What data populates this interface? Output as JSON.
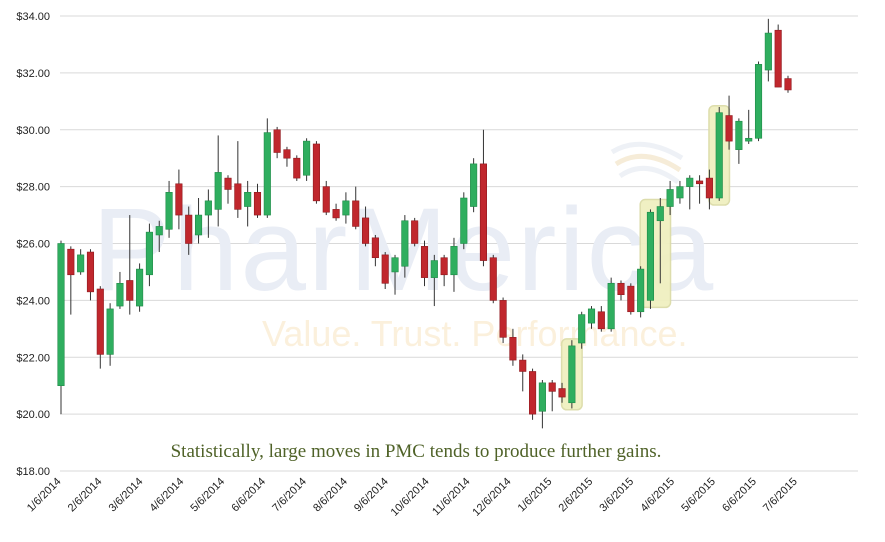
{
  "watermark": {
    "brand": "PharMerica",
    "tagline": "Value. Trust. Performance."
  },
  "annotation": "Statistically, large moves in PMC tends to produce further gains.",
  "colors": {
    "up": "#2fae5f",
    "down": "#c0272d",
    "highlight": "#f0f0c0",
    "grid": "#d9d9d9"
  },
  "chart_data": {
    "type": "candlestick",
    "ylim": [
      18,
      34
    ],
    "yticks": [
      "$18.00",
      "$20.00",
      "$22.00",
      "$24.00",
      "$26.00",
      "$28.00",
      "$30.00",
      "$32.00",
      "$34.00"
    ],
    "xticks": [
      "1/6/2014",
      "2/6/2014",
      "3/6/2014",
      "4/6/2014",
      "5/6/2014",
      "6/6/2014",
      "7/6/2014",
      "8/6/2014",
      "9/6/2014",
      "10/6/2014",
      "11/6/2014",
      "12/6/2014",
      "1/6/2015",
      "2/6/2015",
      "3/6/2015",
      "4/6/2015",
      "5/6/2015",
      "6/6/2015",
      "7/6/2015"
    ],
    "grid": true,
    "candles": [
      {
        "o": 21.0,
        "h": 26.1,
        "l": 20.0,
        "c": 26.0
      },
      {
        "o": 25.8,
        "h": 25.9,
        "l": 23.5,
        "c": 24.9
      },
      {
        "o": 25.0,
        "h": 25.8,
        "l": 24.9,
        "c": 25.6
      },
      {
        "o": 25.7,
        "h": 25.8,
        "l": 24.0,
        "c": 24.3
      },
      {
        "o": 24.4,
        "h": 24.5,
        "l": 21.6,
        "c": 22.1
      },
      {
        "o": 22.1,
        "h": 23.9,
        "l": 21.7,
        "c": 23.7
      },
      {
        "o": 23.8,
        "h": 25.0,
        "l": 23.7,
        "c": 24.6
      },
      {
        "o": 24.7,
        "h": 27.0,
        "l": 23.5,
        "c": 24.0
      },
      {
        "o": 23.8,
        "h": 25.3,
        "l": 23.6,
        "c": 25.1
      },
      {
        "o": 24.9,
        "h": 26.7,
        "l": 24.5,
        "c": 26.4
      },
      {
        "o": 26.3,
        "h": 26.8,
        "l": 25.7,
        "c": 26.6
      },
      {
        "o": 26.5,
        "h": 28.2,
        "l": 26.2,
        "c": 27.8
      },
      {
        "o": 28.1,
        "h": 28.6,
        "l": 26.5,
        "c": 27.0
      },
      {
        "o": 27.0,
        "h": 27.3,
        "l": 25.6,
        "c": 26.0
      },
      {
        "o": 26.3,
        "h": 27.6,
        "l": 26.0,
        "c": 27.0
      },
      {
        "o": 27.0,
        "h": 27.9,
        "l": 26.2,
        "c": 27.5
      },
      {
        "o": 27.2,
        "h": 29.8,
        "l": 26.6,
        "c": 28.5
      },
      {
        "o": 28.3,
        "h": 28.4,
        "l": 27.4,
        "c": 27.9
      },
      {
        "o": 28.1,
        "h": 29.6,
        "l": 26.9,
        "c": 27.2
      },
      {
        "o": 27.3,
        "h": 28.2,
        "l": 26.6,
        "c": 27.8
      },
      {
        "o": 27.8,
        "h": 28.1,
        "l": 26.9,
        "c": 27.0
      },
      {
        "o": 27.0,
        "h": 30.4,
        "l": 26.9,
        "c": 29.9
      },
      {
        "o": 30.0,
        "h": 30.1,
        "l": 29.0,
        "c": 29.2
      },
      {
        "o": 29.3,
        "h": 29.4,
        "l": 28.7,
        "c": 29.0
      },
      {
        "o": 29.0,
        "h": 29.1,
        "l": 28.2,
        "c": 28.3
      },
      {
        "o": 28.4,
        "h": 29.7,
        "l": 28.2,
        "c": 29.6
      },
      {
        "o": 29.5,
        "h": 29.6,
        "l": 27.4,
        "c": 27.5
      },
      {
        "o": 28.0,
        "h": 28.2,
        "l": 27.0,
        "c": 27.1
      },
      {
        "o": 27.2,
        "h": 27.4,
        "l": 26.8,
        "c": 26.9
      },
      {
        "o": 27.0,
        "h": 27.8,
        "l": 26.7,
        "c": 27.5
      },
      {
        "o": 27.5,
        "h": 28.0,
        "l": 26.5,
        "c": 26.6
      },
      {
        "o": 26.9,
        "h": 27.3,
        "l": 25.9,
        "c": 26.0
      },
      {
        "o": 26.2,
        "h": 26.3,
        "l": 25.2,
        "c": 25.5
      },
      {
        "o": 25.6,
        "h": 25.7,
        "l": 24.4,
        "c": 24.6
      },
      {
        "o": 25.0,
        "h": 25.6,
        "l": 24.2,
        "c": 25.5
      },
      {
        "o": 25.2,
        "h": 27.0,
        "l": 24.8,
        "c": 26.8
      },
      {
        "o": 26.8,
        "h": 26.9,
        "l": 25.9,
        "c": 26.0
      },
      {
        "o": 25.9,
        "h": 26.1,
        "l": 24.5,
        "c": 24.8
      },
      {
        "o": 24.8,
        "h": 25.6,
        "l": 23.8,
        "c": 25.4
      },
      {
        "o": 25.5,
        "h": 25.6,
        "l": 24.5,
        "c": 24.9
      },
      {
        "o": 24.9,
        "h": 26.2,
        "l": 24.3,
        "c": 25.9
      },
      {
        "o": 26.0,
        "h": 27.8,
        "l": 25.8,
        "c": 27.6
      },
      {
        "o": 27.3,
        "h": 29.0,
        "l": 27.1,
        "c": 28.8
      },
      {
        "o": 28.8,
        "h": 30.0,
        "l": 25.2,
        "c": 25.4
      },
      {
        "o": 25.5,
        "h": 25.6,
        "l": 23.9,
        "c": 24.0
      },
      {
        "o": 24.0,
        "h": 24.1,
        "l": 22.5,
        "c": 22.7
      },
      {
        "o": 22.7,
        "h": 23.0,
        "l": 21.7,
        "c": 21.9
      },
      {
        "o": 21.9,
        "h": 22.1,
        "l": 20.8,
        "c": 21.5
      },
      {
        "o": 21.5,
        "h": 21.6,
        "l": 19.8,
        "c": 20.0
      },
      {
        "o": 20.1,
        "h": 21.2,
        "l": 19.5,
        "c": 21.1
      },
      {
        "o": 21.1,
        "h": 21.2,
        "l": 20.1,
        "c": 20.8
      },
      {
        "o": 20.9,
        "h": 21.1,
        "l": 20.4,
        "c": 20.6
      },
      {
        "o": 20.4,
        "h": 22.6,
        "l": 20.2,
        "c": 22.4
      },
      {
        "o": 22.5,
        "h": 23.6,
        "l": 22.3,
        "c": 23.5
      },
      {
        "o": 23.2,
        "h": 23.8,
        "l": 23.0,
        "c": 23.7
      },
      {
        "o": 23.6,
        "h": 23.8,
        "l": 22.9,
        "c": 23.0
      },
      {
        "o": 23.0,
        "h": 24.8,
        "l": 22.9,
        "c": 24.6
      },
      {
        "o": 24.6,
        "h": 24.7,
        "l": 24.0,
        "c": 24.2
      },
      {
        "o": 24.5,
        "h": 24.6,
        "l": 23.5,
        "c": 23.6
      },
      {
        "o": 23.6,
        "h": 25.2,
        "l": 23.4,
        "c": 25.1
      },
      {
        "o": 24.0,
        "h": 27.2,
        "l": 23.7,
        "c": 27.1
      },
      {
        "o": 26.8,
        "h": 27.6,
        "l": 24.6,
        "c": 27.3
      },
      {
        "o": 27.3,
        "h": 28.2,
        "l": 27.0,
        "c": 27.9
      },
      {
        "o": 27.6,
        "h": 28.2,
        "l": 27.4,
        "c": 28.0
      },
      {
        "o": 28.0,
        "h": 28.4,
        "l": 27.2,
        "c": 28.3
      },
      {
        "o": 28.2,
        "h": 28.4,
        "l": 27.4,
        "c": 28.1
      },
      {
        "o": 28.3,
        "h": 28.6,
        "l": 27.2,
        "c": 27.6
      },
      {
        "o": 27.6,
        "h": 30.8,
        "l": 27.5,
        "c": 30.6
      },
      {
        "o": 30.5,
        "h": 31.2,
        "l": 29.3,
        "c": 29.6
      },
      {
        "o": 29.3,
        "h": 30.4,
        "l": 28.8,
        "c": 30.3
      },
      {
        "o": 29.6,
        "h": 30.7,
        "l": 29.5,
        "c": 29.7
      },
      {
        "o": 29.7,
        "h": 32.4,
        "l": 29.6,
        "c": 32.3
      },
      {
        "o": 32.1,
        "h": 33.9,
        "l": 31.7,
        "c": 33.4
      },
      {
        "o": 33.5,
        "h": 33.7,
        "l": 31.5,
        "c": 31.5
      },
      {
        "o": 31.8,
        "h": 31.9,
        "l": 31.3,
        "c": 31.4
      }
    ],
    "highlights": [
      {
        "from": 52,
        "to": 52
      },
      {
        "from": 60,
        "to": 61
      },
      {
        "from": 67,
        "to": 67
      }
    ]
  }
}
